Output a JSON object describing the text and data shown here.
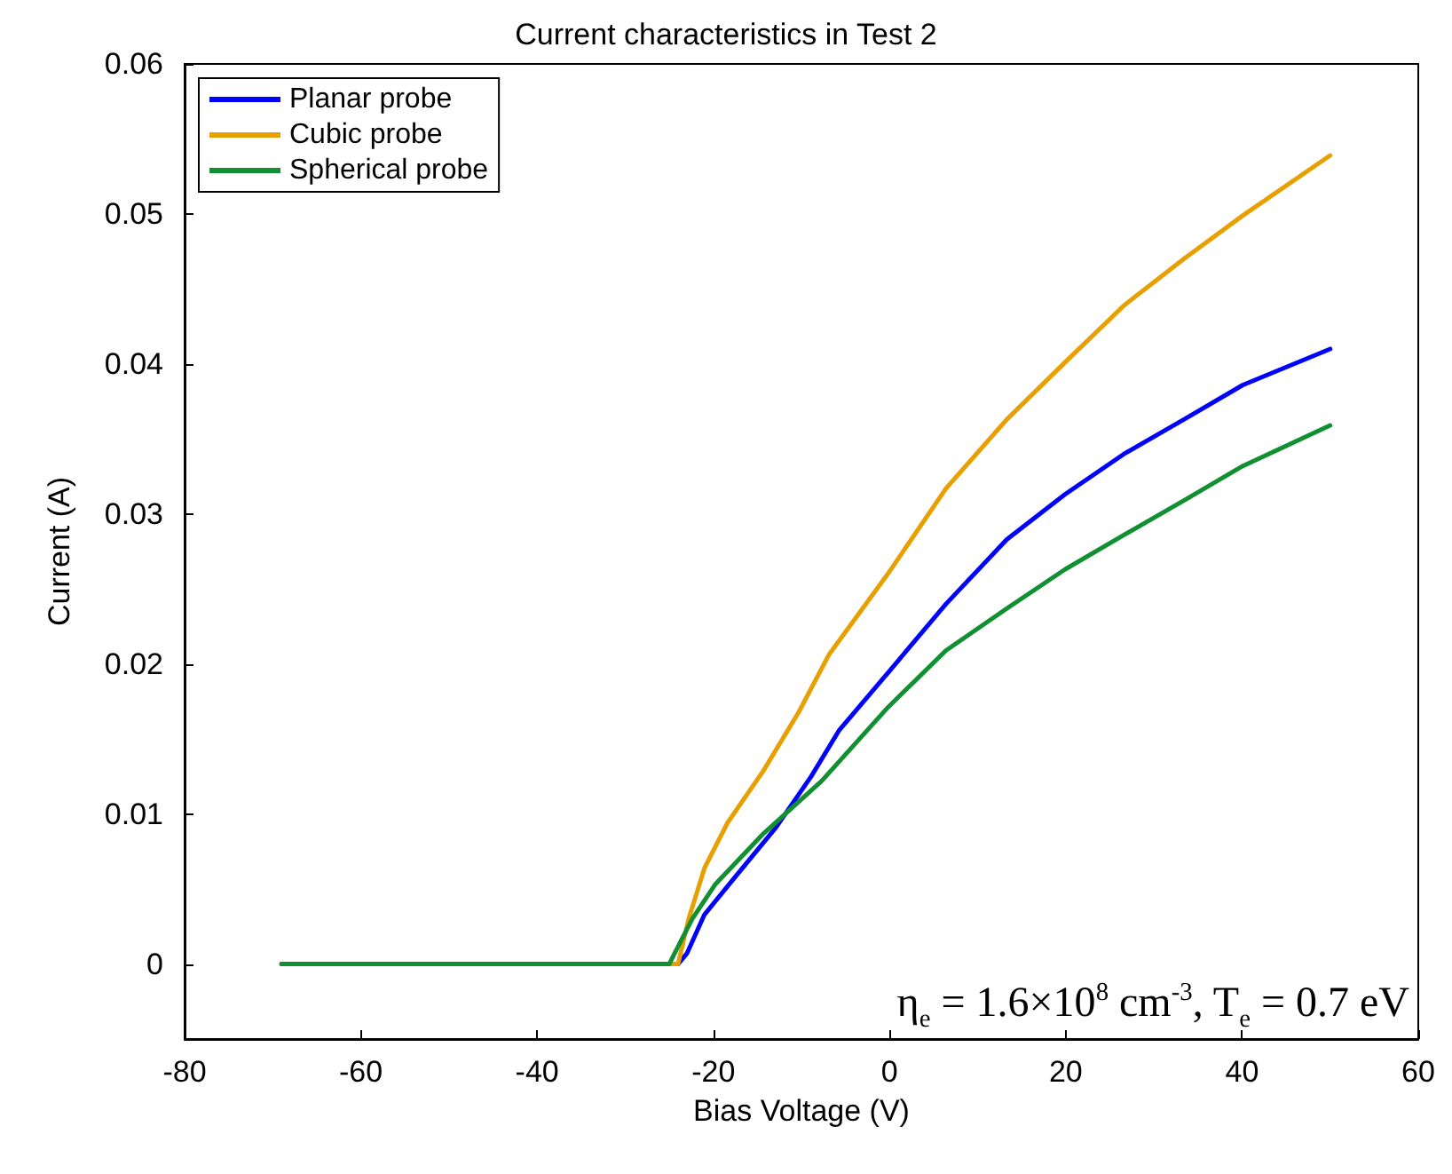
{
  "chart_data": {
    "type": "line",
    "title": "Current characteristics in Test 2",
    "xlabel": "Bias Voltage (V)",
    "ylabel": "Current (A)",
    "annotations": [
      "η$_{e}$ = 1.6×10$^{8}$ cm$^{-3}$, T$_{e}$ = 0.7 eV"
    ],
    "xlim": [
      -80,
      60
    ],
    "xticks": [
      -80,
      -60,
      -40,
      -20,
      0,
      20,
      40,
      60
    ],
    "ylim": [
      -0.005,
      0.06
    ],
    "yticks": [
      0,
      0.01,
      0.02,
      0.03,
      0.04,
      0.05,
      0.06
    ],
    "grid": false,
    "legend": "top left",
    "marker": "none",
    "line_style": "solid",
    "series": [
      {
        "name": "Planar probe",
        "color": "#0000ff",
        "x": [
          -69,
          -40,
          -24,
          -23,
          -21,
          -17.8,
          -12.9,
          -8.9,
          -5.7,
          -0.2,
          6.4,
          13.3,
          19.9,
          26.6,
          33.4,
          40.1,
          50
        ],
        "values": [
          0,
          0,
          0,
          0.0007,
          0.0033,
          0.0056,
          0.0091,
          0.0125,
          0.0156,
          0.0194,
          0.024,
          0.0283,
          0.0313,
          0.034,
          0.0363,
          0.0386,
          0.041
        ]
      },
      {
        "name": "Cubic probe",
        "color": "#e8a000",
        "x": [
          -69,
          -40,
          -24,
          -22.8,
          -21,
          -18.4,
          -14.3,
          -10.3,
          -6.9,
          -0.2,
          6.4,
          13.3,
          19.9,
          26.6,
          33.4,
          40.1,
          50
        ],
        "values": [
          0,
          0,
          0,
          0.003,
          0.0064,
          0.0094,
          0.0129,
          0.0168,
          0.0206,
          0.026,
          0.0317,
          0.0363,
          0.0401,
          0.0439,
          0.047,
          0.0499,
          0.0539
        ]
      },
      {
        "name": "Spherical probe",
        "color": "#109030",
        "x": [
          -69,
          -40,
          -25,
          -24.4,
          -22.4,
          -19.8,
          -14.3,
          -7.7,
          -0.2,
          6.4,
          13.3,
          19.9,
          26.6,
          33.4,
          40.1,
          50
        ],
        "values": [
          0,
          0,
          0,
          0.0007,
          0.003,
          0.0053,
          0.0087,
          0.0122,
          0.0171,
          0.0209,
          0.0237,
          0.0263,
          0.0286,
          0.0309,
          0.0332,
          0.0359
        ]
      }
    ]
  }
}
